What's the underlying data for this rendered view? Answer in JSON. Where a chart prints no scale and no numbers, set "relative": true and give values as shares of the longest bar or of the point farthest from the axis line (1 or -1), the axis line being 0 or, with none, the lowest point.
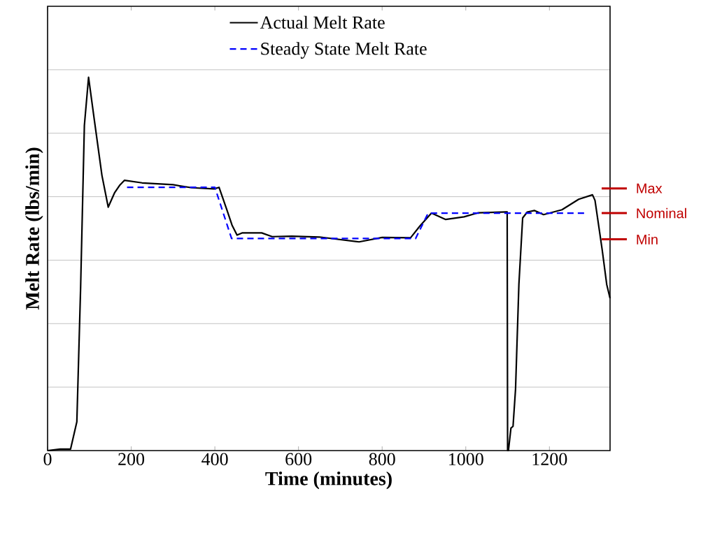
{
  "chart_data": {
    "type": "line",
    "relative": true,
    "xlabel": "Time (minutes)",
    "ylabel": "Melt Rate (lbs/min)",
    "xlim": [
      0,
      1345
    ],
    "xticks": [
      0,
      200,
      400,
      600,
      800,
      1000,
      1200
    ],
    "tick_labels": "x",
    "grid": "y",
    "legend": "top",
    "marker": "none",
    "series": [
      {
        "name": "Actual Melt Rate",
        "color": "#000000",
        "line_style": "solid",
        "x": [
          0,
          30,
          55,
          70,
          79,
          88,
          98,
          112,
          130,
          145,
          160,
          172,
          184,
          226,
          300,
          345,
          398,
          410,
          429,
          441,
          453,
          465,
          512,
          537,
          584,
          650,
          745,
          800,
          868,
          890,
          918,
          952,
          996,
          1030,
          1097,
          1099,
          1100,
          1102,
          1108,
          1113,
          1119,
          1127,
          1136,
          1147,
          1164,
          1186,
          1230,
          1270,
          1303,
          1309,
          1326,
          1337,
          1345
        ],
        "values": [
          0,
          0.004,
          0.004,
          0.077,
          0.437,
          0.871,
          1,
          0.884,
          0.737,
          0.652,
          0.69,
          0.71,
          0.724,
          0.717,
          0.712,
          0.704,
          0.701,
          0.705,
          0.644,
          0.604,
          0.577,
          0.583,
          0.583,
          0.573,
          0.574,
          0.572,
          0.559,
          0.571,
          0.57,
          0.601,
          0.636,
          0.619,
          0.626,
          0.637,
          0.639,
          0.639,
          0,
          0,
          0.06,
          0.065,
          0.165,
          0.445,
          0.623,
          0.639,
          0.643,
          0.632,
          0.645,
          0.673,
          0.685,
          0.67,
          0.539,
          0.445,
          0.408
        ]
      },
      {
        "name": "Steady State Melt Rate",
        "color": "#0000ff",
        "line_style": "dashed",
        "x": [
          190,
          400,
          440,
          880,
          910,
          1287
        ],
        "values": [
          0.705,
          0.705,
          0.568,
          0.568,
          0.636,
          0.636
        ]
      }
    ],
    "ref_lines": [
      {
        "axis": "y",
        "value": 0.702,
        "label": "Max",
        "color": "#c00000"
      },
      {
        "axis": "y",
        "value": 0.636,
        "label": "Nominal",
        "color": "#c00000"
      },
      {
        "axis": "y",
        "value": 0.566,
        "label": "Min",
        "color": "#c00000"
      }
    ]
  }
}
